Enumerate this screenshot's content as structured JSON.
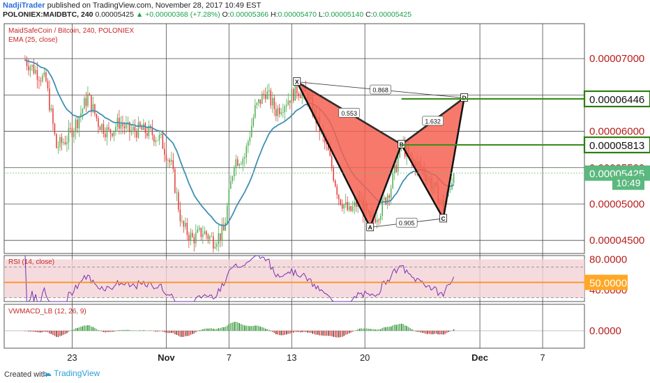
{
  "header": {
    "author": "NadjiTrader",
    "published": " published on TradingView.com, November 28, 2017 10:49 EST",
    "symbol": "POLONIEX:MAIDBTC, 240",
    "last": "0.00005425",
    "change": "▲ +0.00000368 (+7.28%)",
    "o_label": "O:",
    "o": "0.00005366",
    "h_label": "H:",
    "h": "0.00005470",
    "l_label": "L:",
    "l": "0.00005140",
    "c_label": "C:",
    "c": "0.00005425"
  },
  "footer": {
    "created": "Created with",
    "brand": "TradingView"
  },
  "colors": {
    "up": "#4caf50",
    "down": "#e53935",
    "ema": "#3f8fb4",
    "pattern_fill": "#f46152",
    "rsi_line": "#7a2fae",
    "rsi_mid": "#ff8c1a",
    "level": "#3e8e1e"
  },
  "chart_data": [
    {
      "type": "candlestick",
      "title": "MaidSafeCoin / Bitcoin, 240, POLONIEX",
      "indicator": "EMA (25, close)",
      "x_ticks": [
        "23",
        "Nov",
        "7",
        "13",
        "20",
        "Dec",
        "7"
      ],
      "y_ticks": [
        "0.00007000",
        "0.00006500",
        "0.00006000",
        "0.00005500",
        "0.00005000",
        "0.00004500"
      ],
      "ylim": [
        4.32e-05,
        7.48e-05
      ],
      "anchor_closes": [
        [
          "2017-10-18",
          6.98e-05
        ],
        [
          "2017-10-20",
          6.68e-05
        ],
        [
          "2017-10-21",
          5.78e-05
        ],
        [
          "2017-10-22",
          5.9e-05
        ],
        [
          "2017-10-23",
          6.15e-05
        ],
        [
          "2017-10-24",
          6.48e-05
        ],
        [
          "2017-10-25",
          6.12e-05
        ],
        [
          "2017-10-26",
          5.98e-05
        ],
        [
          "2017-10-27",
          6.12e-05
        ],
        [
          "2017-10-28",
          6e-05
        ],
        [
          "2017-10-29",
          6.02e-05
        ],
        [
          "2017-10-30",
          5.98e-05
        ],
        [
          "2017-10-31",
          5.88e-05
        ],
        [
          "2017-11-01",
          5.52e-05
        ],
        [
          "2017-11-02",
          4.7e-05
        ],
        [
          "2017-11-03",
          4.52e-05
        ],
        [
          "2017-11-04",
          4.62e-05
        ],
        [
          "2017-11-05",
          4.5e-05
        ],
        [
          "2017-11-06",
          4.62e-05
        ],
        [
          "2017-11-07",
          5.6e-05
        ],
        [
          "2017-11-08",
          5.65e-05
        ],
        [
          "2017-11-09",
          6.3e-05
        ],
        [
          "2017-11-10",
          6.55e-05
        ],
        [
          "2017-11-11",
          6.28e-05
        ],
        [
          "2017-11-12",
          6.42e-05
        ],
        [
          "2017-11-13",
          6.58e-05
        ],
        [
          "2017-11-14",
          6.48e-05
        ],
        [
          "2017-11-15",
          6.1e-05
        ],
        [
          "2017-11-16",
          5.7e-05
        ],
        [
          "2017-11-17",
          5.1e-05
        ],
        [
          "2017-11-18",
          4.88e-05
        ],
        [
          "2017-11-19",
          5.05e-05
        ],
        [
          "2017-11-20",
          4.75e-05
        ],
        [
          "2017-11-21",
          4.92e-05
        ],
        [
          "2017-11-22",
          5.25e-05
        ],
        [
          "2017-11-23",
          5.82e-05
        ],
        [
          "2017-11-24",
          5.58e-05
        ],
        [
          "2017-11-25",
          5.48e-05
        ],
        [
          "2017-11-26",
          5.25e-05
        ],
        [
          "2017-11-27",
          4.95e-05
        ],
        [
          "2017-11-28",
          5.42e-05
        ]
      ],
      "price_labels": [
        {
          "text": "0.00006446",
          "value": 6.446e-05,
          "kind": "level"
        },
        {
          "text": "0.00005813",
          "value": 5.813e-05,
          "kind": "level"
        },
        {
          "text": "0.00005425",
          "value": 5.425e-05,
          "kind": "last"
        },
        {
          "text": "10:49",
          "value": 5.3e-05,
          "kind": "time"
        }
      ],
      "pattern": {
        "points": [
          {
            "label": "X",
            "date": "2017-11-13",
            "value": 6.68e-05
          },
          {
            "label": "A",
            "date": "2017-11-20",
            "value": 4.68e-05
          },
          {
            "label": "B",
            "date": "2017-11-23",
            "value": 5.82e-05
          },
          {
            "label": "C",
            "date": "2017-11-27",
            "value": 4.8e-05
          },
          {
            "label": "D",
            "date": "2017-11-29",
            "value": 6.46e-05
          }
        ],
        "ratios": [
          {
            "text": "0.868",
            "from": "X",
            "to": "D"
          },
          {
            "text": "0.553",
            "from": "X",
            "to": "B"
          },
          {
            "text": "1.632",
            "from": "B",
            "to": "D"
          },
          {
            "text": "0.905",
            "from": "A",
            "to": "C"
          }
        ]
      }
    },
    {
      "type": "line",
      "indicator": "RSI (14, close)",
      "y_ticks": [
        "80.0000",
        "40.0000"
      ],
      "mid_label": "50.0000",
      "ylim": [
        25,
        85
      ]
    },
    {
      "type": "bar",
      "indicator": "VWMACD_LB (12, 26, 9)",
      "y_ticks": [
        "0.0000"
      ]
    }
  ]
}
